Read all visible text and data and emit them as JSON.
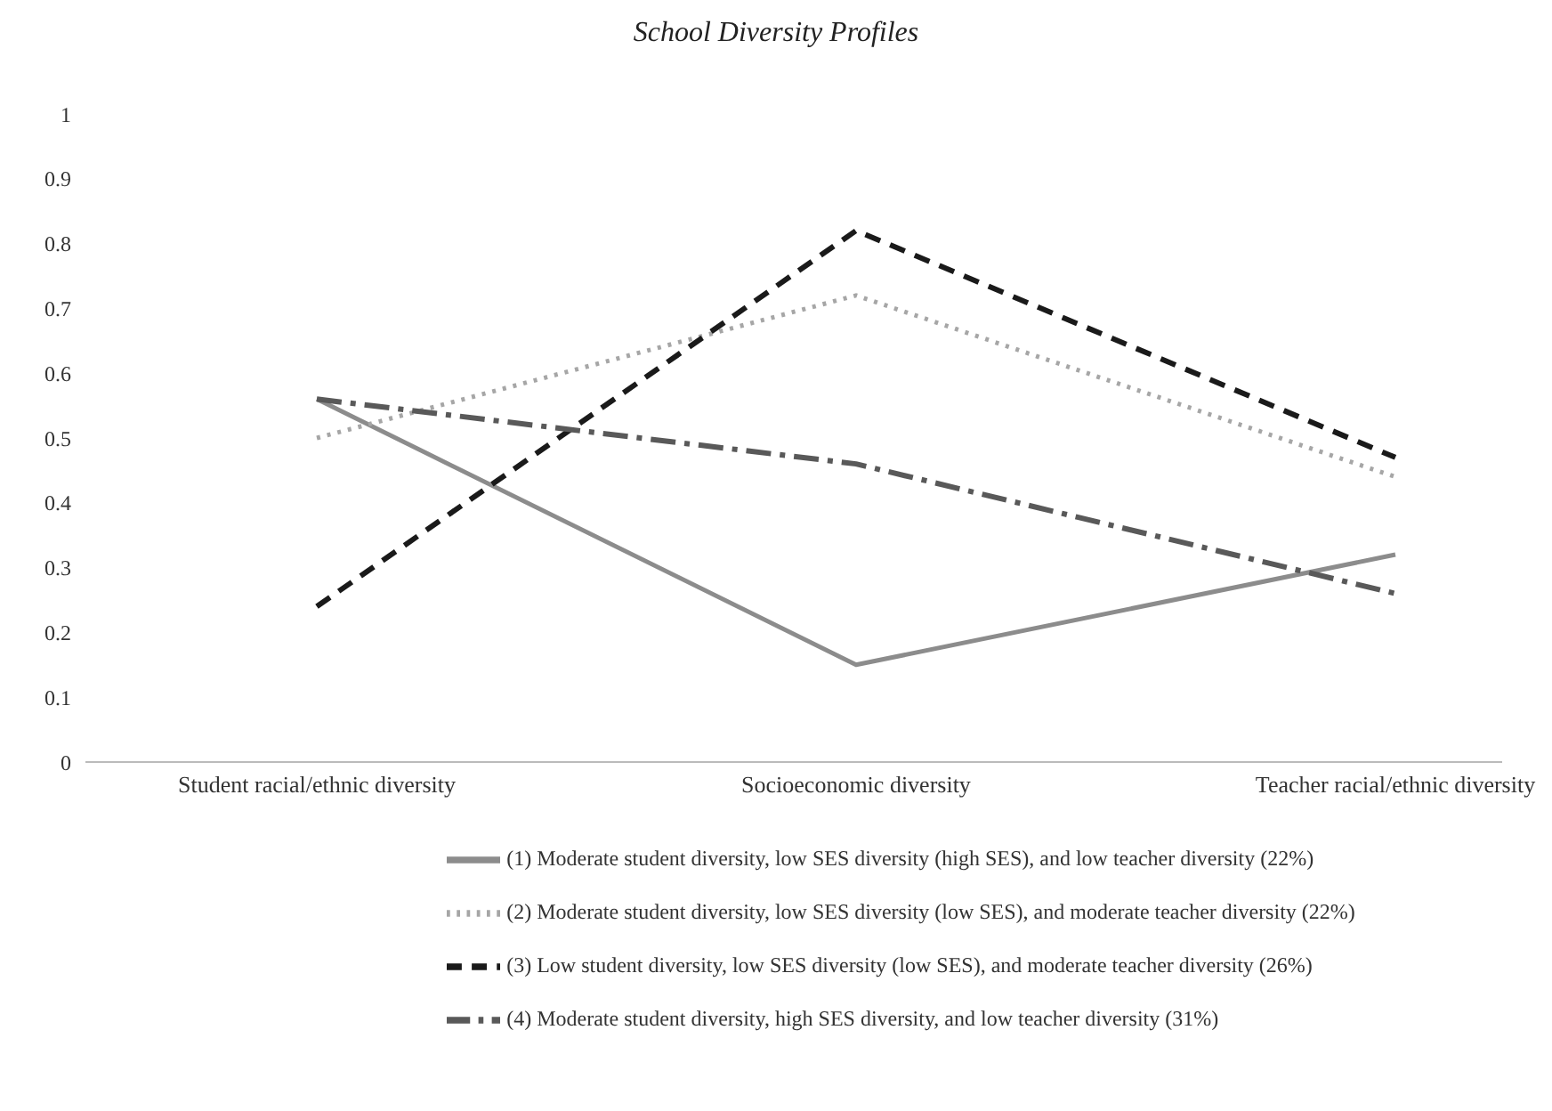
{
  "chart_data": {
    "type": "line",
    "title": "School Diversity Profiles",
    "categories": [
      "Student racial/ethnic diversity",
      "Socioeconomic diversity",
      "Teacher racial/ethnic diversity"
    ],
    "series": [
      {
        "name": "(1) Moderate student diversity, low SES diversity (high SES), and low teacher diversity (22%)",
        "color": "#8c8c8c",
        "line_style": "solid",
        "values": [
          0.56,
          0.15,
          0.32
        ]
      },
      {
        "name": "(2) Moderate student diversity, low SES diversity (low SES), and moderate teacher diversity (22%)",
        "color": "#a6a6a6",
        "line_style": "dotted",
        "values": [
          0.5,
          0.72,
          0.44
        ]
      },
      {
        "name": "(3) Low student diversity, low SES diversity (low SES), and moderate teacher diversity (26%)",
        "color": "#1a1a1a",
        "line_style": "dashed",
        "values": [
          0.24,
          0.82,
          0.47
        ]
      },
      {
        "name": "(4) Moderate student diversity, high SES diversity, and low teacher diversity (31%)",
        "color": "#595959",
        "line_style": "dashdot",
        "values": [
          0.56,
          0.46,
          0.26
        ]
      }
    ],
    "ylim": [
      0,
      1
    ],
    "yticks": [
      0,
      0.1,
      0.2,
      0.3,
      0.4,
      0.5,
      0.6,
      0.7,
      0.8,
      0.9,
      1
    ],
    "grid": false,
    "legend": "bottom",
    "marker": "none"
  }
}
